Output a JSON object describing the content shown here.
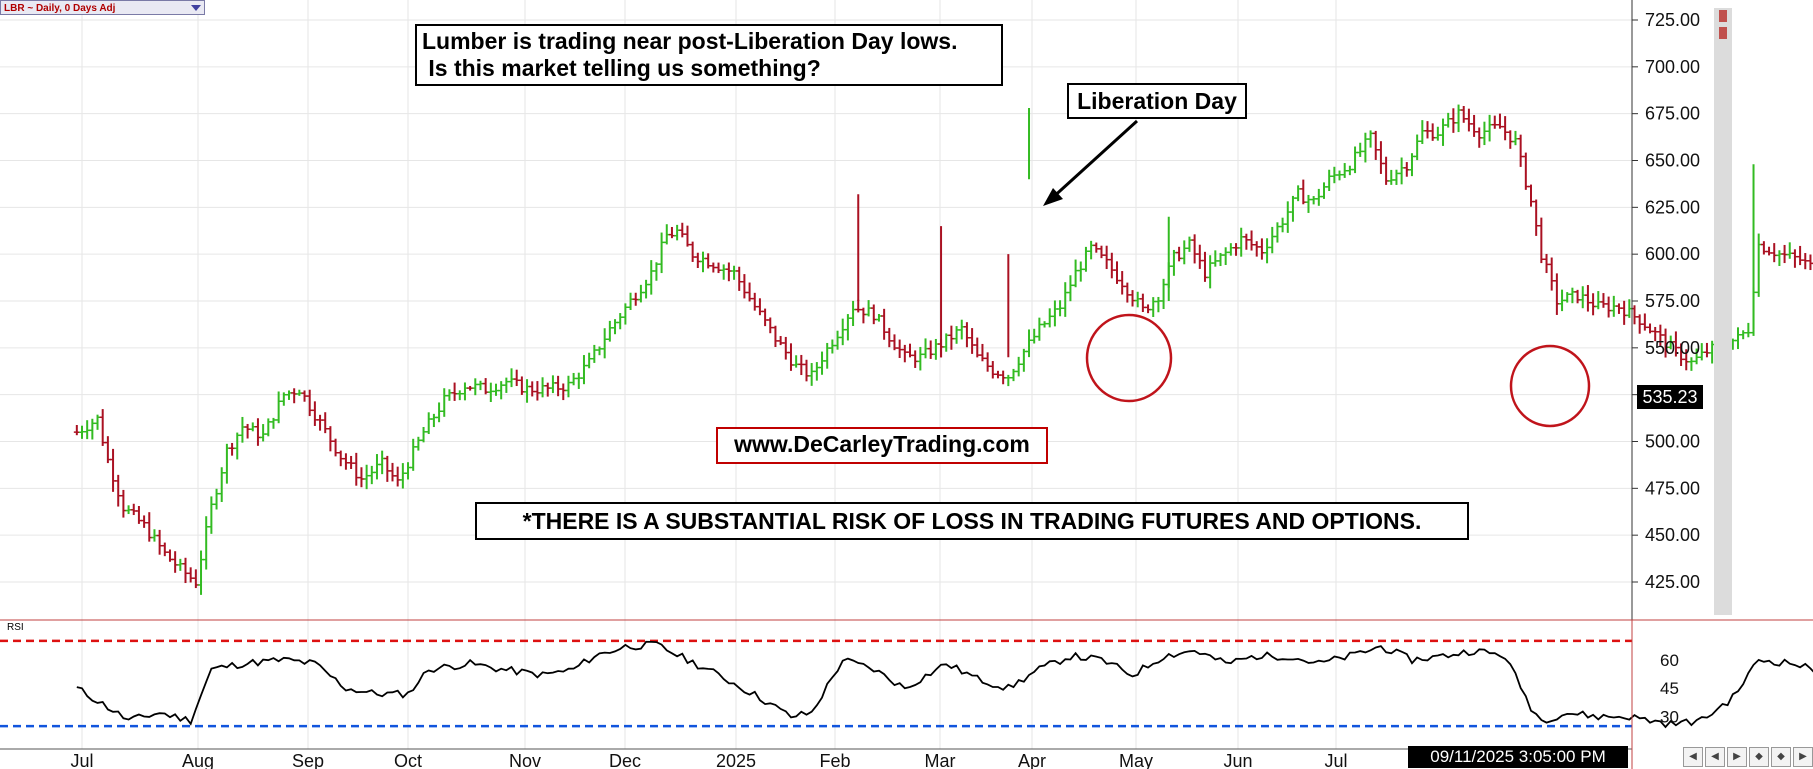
{
  "header": {
    "symbol_label": "LBR ~ Daily, 0 Days Adj"
  },
  "annotations": {
    "question_line1": "Lumber is trading near post-Liberation Day lows.",
    "question_line2": " Is this market telling us something?",
    "liberation_day": "Liberation Day",
    "website": "www.DeCarleyTrading.com",
    "disclaimer": "*THERE IS A SUBSTANTIAL RISK OF LOSS IN TRADING FUTURES AND OPTIONS."
  },
  "status": {
    "last_price": "535.23",
    "datetime": "09/11/2025 3:05:00 PM",
    "rsi_label": "RSI"
  },
  "colors": {
    "up": "#33bb22",
    "down": "#aa1122",
    "circle": "#c0141b",
    "overbought": "#dd1111",
    "oversold": "#1155dd"
  },
  "chart_data": [
    {
      "type": "ohlc",
      "name": "LBR",
      "x_labels": [
        "Jul",
        "Aug",
        "Sep",
        "Oct",
        "Nov",
        "Dec",
        "2025",
        "Feb",
        "Mar",
        "Apr",
        "May",
        "Jun",
        "Jul"
      ],
      "y_ticks": [
        "725.00",
        "700.00",
        "675.00",
        "650.00",
        "625.00",
        "600.00",
        "575.00",
        "550.00",
        "525.00",
        "500.00",
        "475.00",
        "450.00",
        "425.00"
      ],
      "y_range": [
        410,
        735
      ],
      "path": [
        [
          0,
          505
        ],
        [
          0.2,
          512
        ],
        [
          0.3,
          490
        ],
        [
          0.45,
          465
        ],
        [
          0.65,
          455
        ],
        [
          0.85,
          440
        ],
        [
          1.0,
          432
        ],
        [
          1.15,
          425
        ],
        [
          1.3,
          465
        ],
        [
          1.45,
          495
        ],
        [
          1.6,
          508
        ],
        [
          1.8,
          503
        ],
        [
          2.0,
          525
        ],
        [
          2.15,
          528
        ],
        [
          2.35,
          510
        ],
        [
          2.55,
          492
        ],
        [
          2.75,
          480
        ],
        [
          2.95,
          488
        ],
        [
          3.1,
          478
        ],
        [
          3.35,
          505
        ],
        [
          3.55,
          522
        ],
        [
          3.75,
          530
        ],
        [
          3.95,
          528
        ],
        [
          4.15,
          532
        ],
        [
          4.35,
          528
        ],
        [
          4.55,
          528
        ],
        [
          4.75,
          530
        ],
        [
          4.95,
          542
        ],
        [
          5.15,
          560
        ],
        [
          5.35,
          575
        ],
        [
          5.55,
          590
        ],
        [
          5.7,
          610
        ],
        [
          5.8,
          612
        ],
        [
          5.95,
          600
        ],
        [
          6.15,
          595
        ],
        [
          6.35,
          590
        ],
        [
          6.55,
          572
        ],
        [
          6.75,
          555
        ],
        [
          6.95,
          540
        ],
        [
          7.1,
          535
        ],
        [
          7.2,
          545
        ],
        [
          7.35,
          558
        ],
        [
          7.5,
          572
        ],
        [
          7.7,
          568
        ],
        [
          7.85,
          556
        ],
        [
          8.0,
          545
        ],
        [
          8.15,
          545
        ],
        [
          8.35,
          552
        ],
        [
          8.55,
          560
        ],
        [
          8.7,
          545
        ],
        [
          8.85,
          538
        ],
        [
          9.0,
          535
        ],
        [
          9.15,
          548
        ],
        [
          9.3,
          560
        ],
        [
          9.5,
          572
        ],
        [
          9.65,
          590
        ],
        [
          9.8,
          603
        ],
        [
          9.95,
          595
        ],
        [
          10.1,
          585
        ],
        [
          10.3,
          570
        ],
        [
          10.45,
          578
        ],
        [
          10.6,
          598
        ],
        [
          10.75,
          605
        ],
        [
          10.9,
          590
        ],
        [
          11.05,
          598
        ],
        [
          11.25,
          608
        ],
        [
          11.45,
          602
        ],
        [
          11.65,
          618
        ],
        [
          11.8,
          632
        ],
        [
          11.95,
          628
        ],
        [
          12.1,
          640
        ],
        [
          12.3,
          648
        ],
        [
          12.5,
          662
        ],
        [
          12.65,
          640
        ],
        [
          12.85,
          648
        ],
        [
          13.0,
          665
        ],
        [
          13.15,
          665
        ],
        [
          13.35,
          675
        ],
        [
          13.55,
          665
        ],
        [
          13.75,
          668
        ],
        [
          13.9,
          660
        ],
        [
          14.05,
          628
        ],
        [
          14.15,
          600
        ],
        [
          14.3,
          575
        ],
        [
          14.5,
          578
        ],
        [
          14.7,
          572
        ],
        [
          14.9,
          572
        ],
        [
          15.1,
          565
        ],
        [
          15.3,
          555
        ],
        [
          15.45,
          548
        ],
        [
          15.6,
          542
        ],
        [
          15.75,
          548
        ],
        [
          15.9,
          552
        ],
        [
          16.05,
          555
        ],
        [
          16.15,
          560
        ],
        [
          16.25,
          605
        ],
        [
          16.45,
          600
        ],
        [
          16.65,
          597
        ],
        [
          16.85,
          590
        ],
        [
          17.05,
          598
        ],
        [
          17.25,
          605
        ],
        [
          17.45,
          608
        ],
        [
          17.6,
          615
        ],
        [
          17.8,
          612
        ],
        [
          17.95,
          605
        ],
        [
          18.1,
          620
        ],
        [
          18.3,
          612
        ],
        [
          18.5,
          608
        ],
        [
          18.7,
          605
        ],
        [
          18.9,
          588
        ],
        [
          19.0,
          578
        ],
        [
          19.3,
          652
        ],
        [
          19.5,
          665
        ],
        [
          19.7,
          670
        ],
        [
          19.9,
          682
        ],
        [
          20.05,
          690
        ],
        [
          20.2,
          682
        ],
        [
          20.35,
          660
        ],
        [
          20.5,
          640
        ],
        [
          20.65,
          612
        ],
        [
          20.85,
          605
        ],
        [
          21.0,
          598
        ],
        [
          21.15,
          608
        ],
        [
          21.3,
          598
        ],
        [
          21.45,
          580
        ],
        [
          21.6,
          560
        ],
        [
          21.75,
          550
        ],
        [
          21.85,
          540
        ],
        [
          21.95,
          525
        ],
        [
          22.1,
          530
        ]
      ],
      "rsi_ticks": [
        "60",
        "45",
        "30"
      ],
      "rsi_levels": {
        "overbought": 70,
        "oversold": 25
      },
      "rsi_range": [
        15,
        80
      ],
      "rsi": [
        [
          0,
          45
        ],
        [
          0.3,
          35
        ],
        [
          0.5,
          28
        ],
        [
          0.8,
          32
        ],
        [
          1.1,
          28
        ],
        [
          1.3,
          55
        ],
        [
          1.6,
          58
        ],
        [
          2.0,
          60
        ],
        [
          2.3,
          58
        ],
        [
          2.6,
          45
        ],
        [
          2.9,
          42
        ],
        [
          3.2,
          42
        ],
        [
          3.4,
          55
        ],
        [
          3.8,
          58
        ],
        [
          4.1,
          55
        ],
        [
          4.5,
          52
        ],
        [
          4.8,
          55
        ],
        [
          5.0,
          62
        ],
        [
          5.3,
          67
        ],
        [
          5.6,
          68
        ],
        [
          5.9,
          60
        ],
        [
          6.2,
          52
        ],
        [
          6.6,
          40
        ],
        [
          6.9,
          30
        ],
        [
          7.1,
          32
        ],
        [
          7.4,
          60
        ],
        [
          7.7,
          55
        ],
        [
          8.0,
          45
        ],
        [
          8.4,
          58
        ],
        [
          8.7,
          50
        ],
        [
          9.0,
          45
        ],
        [
          9.3,
          55
        ],
        [
          9.6,
          62
        ],
        [
          9.9,
          60
        ],
        [
          10.2,
          52
        ],
        [
          10.5,
          62
        ],
        [
          10.8,
          65
        ],
        [
          11.1,
          58
        ],
        [
          11.4,
          62
        ],
        [
          11.7,
          62
        ],
        [
          12.0,
          58
        ],
        [
          12.3,
          62
        ],
        [
          12.6,
          67
        ],
        [
          12.9,
          60
        ],
        [
          13.2,
          62
        ],
        [
          13.5,
          65
        ],
        [
          13.8,
          62
        ],
        [
          14.05,
          35
        ],
        [
          14.15,
          28
        ],
        [
          14.4,
          32
        ],
        [
          14.7,
          30
        ],
        [
          15.0,
          30
        ],
        [
          15.4,
          26
        ],
        [
          15.7,
          28
        ],
        [
          16.0,
          40
        ],
        [
          16.25,
          60
        ],
        [
          16.6,
          58
        ],
        [
          16.9,
          52
        ],
        [
          17.3,
          60
        ],
        [
          17.6,
          65
        ],
        [
          17.9,
          60
        ],
        [
          18.2,
          62
        ],
        [
          18.5,
          55
        ],
        [
          18.8,
          50
        ],
        [
          19.0,
          35
        ],
        [
          19.3,
          68
        ],
        [
          19.6,
          68
        ],
        [
          19.9,
          70
        ],
        [
          20.2,
          72
        ],
        [
          20.5,
          52
        ],
        [
          20.8,
          40
        ],
        [
          21.1,
          32
        ],
        [
          21.4,
          35
        ],
        [
          21.7,
          25
        ],
        [
          21.95,
          18
        ],
        [
          22.1,
          20
        ]
      ]
    }
  ]
}
